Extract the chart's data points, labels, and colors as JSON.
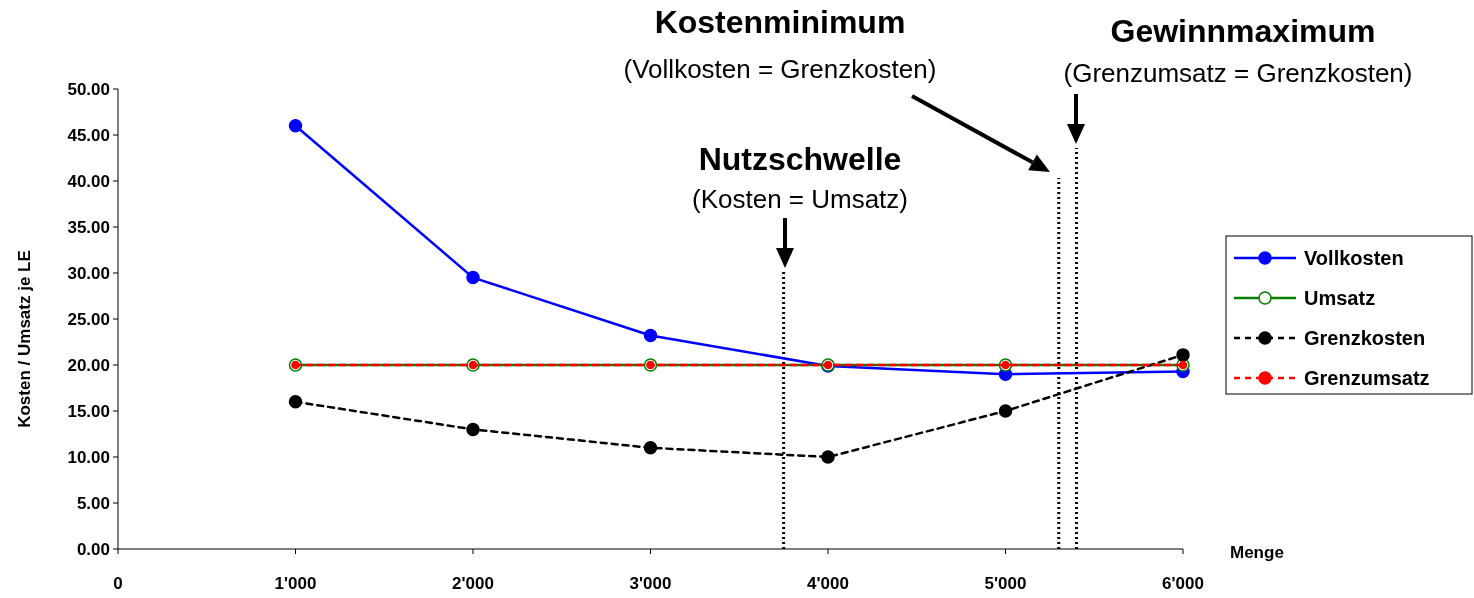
{
  "chart_data": {
    "type": "line",
    "xlabel": "Menge",
    "ylabel": "Kosten / Umsatz je LE",
    "x": [
      1000,
      2000,
      3000,
      4000,
      5000,
      6000
    ],
    "xlim": [
      0,
      6000
    ],
    "xticks": [
      {
        "value": 0,
        "label": "0"
      },
      {
        "value": 1000,
        "label": "1'000"
      },
      {
        "value": 2000,
        "label": "2'000"
      },
      {
        "value": 3000,
        "label": "3'000"
      },
      {
        "value": 4000,
        "label": "4'000"
      },
      {
        "value": 5000,
        "label": "5'000"
      },
      {
        "value": 6000,
        "label": "6'000"
      }
    ],
    "ylim": [
      0,
      50
    ],
    "yticks": [
      {
        "value": 0,
        "label": "0.00"
      },
      {
        "value": 5,
        "label": "5.00"
      },
      {
        "value": 10,
        "label": "10.00"
      },
      {
        "value": 15,
        "label": "15.00"
      },
      {
        "value": 20,
        "label": "20.00"
      },
      {
        "value": 25,
        "label": "25.00"
      },
      {
        "value": 30,
        "label": "30.00"
      },
      {
        "value": 35,
        "label": "35.00"
      },
      {
        "value": 40,
        "label": "40.00"
      },
      {
        "value": 45,
        "label": "45.00"
      },
      {
        "value": 50,
        "label": "50.00"
      }
    ],
    "series": [
      {
        "name": "Vollkosten",
        "color": "#0000ff",
        "values": [
          46.0,
          29.5,
          23.2,
          19.9,
          19.0,
          19.3
        ],
        "marker": "circle",
        "line_style": "solid"
      },
      {
        "name": "Umsatz",
        "color": "#008000",
        "values": [
          20,
          20,
          20,
          20,
          20,
          20
        ],
        "marker": "circle",
        "line_style": "solid"
      },
      {
        "name": "Grenzkosten",
        "color": "#000000",
        "values": [
          16.0,
          13.0,
          11.0,
          10.0,
          15.0,
          21.1
        ],
        "marker": "circle",
        "line_style": "dashed"
      },
      {
        "name": "Grenzumsatz",
        "color": "#ff0000",
        "values": [
          20,
          20,
          20,
          20,
          20,
          20
        ],
        "marker": "circle",
        "line_style": "dashed"
      }
    ],
    "ref_lines": [
      {
        "axis": "x",
        "value": 3750,
        "line_style": "dotted",
        "color": "#000000"
      },
      {
        "axis": "x",
        "value": 5300,
        "line_style": "dotted",
        "color": "#000000"
      },
      {
        "axis": "x",
        "value": 5400,
        "line_style": "dotted",
        "color": "#000000"
      }
    ],
    "annotations": [
      "Nutzschwelle",
      "(Kosten = Umsatz)",
      "Kostenminimum",
      "(Vollkosten = Grenzkosten)",
      "Gewinnmaximum",
      "(Grenzumsatz = Grenzkosten)"
    ],
    "legend": "right",
    "grid": false
  }
}
